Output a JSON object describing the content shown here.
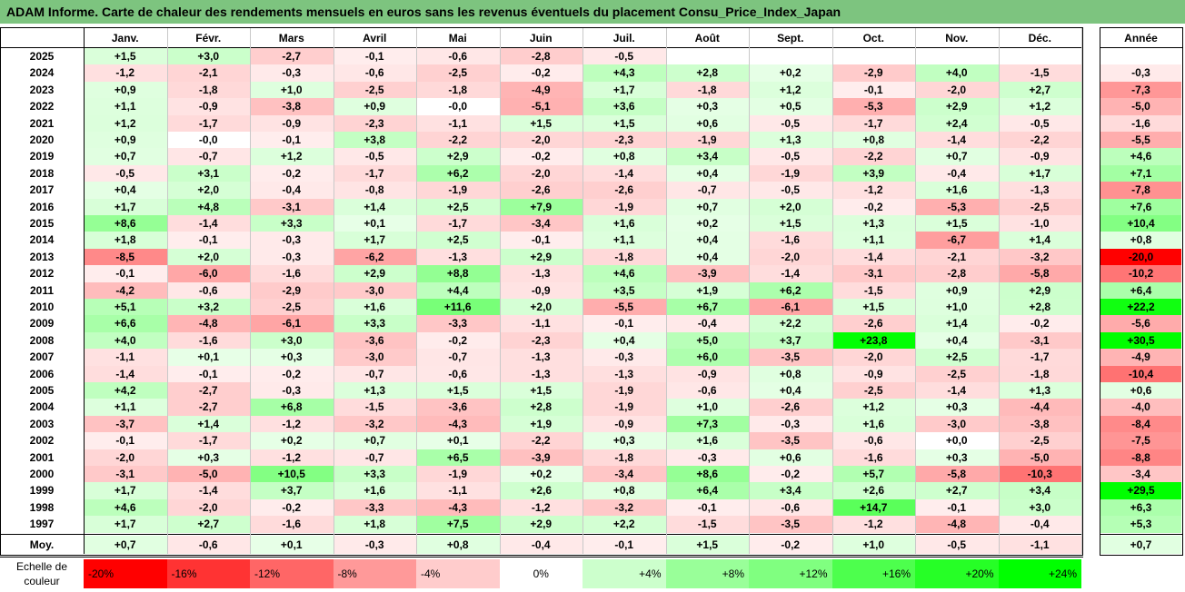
{
  "title": "ADAM Informe. Carte de chaleur des rendements mensuels en euros sans les revenus éventuels du placement Consu_Price_Index_Japan",
  "chart_data": {
    "type": "heatmap",
    "months": [
      "Janv.",
      "Févr.",
      "Mars",
      "Avril",
      "Mai",
      "Juin",
      "Juil.",
      "Août",
      "Sept.",
      "Oct.",
      "Nov.",
      "Déc."
    ],
    "year_header": "Année",
    "rows": [
      {
        "year": "2025",
        "m": [
          "+1,5",
          "+3,0",
          "-2,7",
          "-0,1",
          "-0,6",
          "-2,8",
          "-0,5",
          "",
          "",
          "",
          "",
          ""
        ],
        "y": ""
      },
      {
        "year": "2024",
        "m": [
          "-1,2",
          "-2,1",
          "-0,3",
          "-0,6",
          "-2,5",
          "-0,2",
          "+4,3",
          "+2,8",
          "+0,2",
          "-2,9",
          "+4,0",
          "-1,5"
        ],
        "y": "-0,3"
      },
      {
        "year": "2023",
        "m": [
          "+0,9",
          "-1,8",
          "+1,0",
          "-2,5",
          "-1,8",
          "-4,9",
          "+1,7",
          "-1,8",
          "+1,2",
          "-0,1",
          "-2,0",
          "+2,7"
        ],
        "y": "-7,3"
      },
      {
        "year": "2022",
        "m": [
          "+1,1",
          "-0,9",
          "-3,8",
          "+0,9",
          "-0,0",
          "-5,1",
          "+3,6",
          "+0,3",
          "+0,5",
          "-5,3",
          "+2,9",
          "+1,2"
        ],
        "y": "-5,0"
      },
      {
        "year": "2021",
        "m": [
          "+1,2",
          "-1,7",
          "-0,9",
          "-2,3",
          "-1,1",
          "+1,5",
          "+1,5",
          "+0,6",
          "-0,5",
          "-1,7",
          "+2,4",
          "-0,5"
        ],
        "y": "-1,6"
      },
      {
        "year": "2020",
        "m": [
          "+0,9",
          "-0,0",
          "-0,1",
          "+3,8",
          "-2,2",
          "-2,0",
          "-2,3",
          "-1,9",
          "+1,3",
          "+0,8",
          "-1,4",
          "-2,2"
        ],
        "y": "-5,5"
      },
      {
        "year": "2019",
        "m": [
          "+0,7",
          "-0,7",
          "+1,2",
          "-0,5",
          "+2,9",
          "-0,2",
          "+0,8",
          "+3,4",
          "-0,5",
          "-2,2",
          "+0,7",
          "-0,9"
        ],
        "y": "+4,6"
      },
      {
        "year": "2018",
        "m": [
          "-0,5",
          "+3,1",
          "-0,2",
          "-1,7",
          "+6,2",
          "-2,0",
          "-1,4",
          "+0,4",
          "-1,9",
          "+3,9",
          "-0,4",
          "+1,7"
        ],
        "y": "+7,1"
      },
      {
        "year": "2017",
        "m": [
          "+0,4",
          "+2,0",
          "-0,4",
          "-0,8",
          "-1,9",
          "-2,6",
          "-2,6",
          "-0,7",
          "-0,5",
          "-1,2",
          "+1,6",
          "-1,3"
        ],
        "y": "-7,8"
      },
      {
        "year": "2016",
        "m": [
          "+1,7",
          "+4,8",
          "-3,1",
          "+1,4",
          "+2,5",
          "+7,9",
          "-1,9",
          "+0,7",
          "+2,0",
          "-0,2",
          "-5,3",
          "-2,5"
        ],
        "y": "+7,6"
      },
      {
        "year": "2015",
        "m": [
          "+8,6",
          "-1,4",
          "+3,3",
          "+0,1",
          "-1,7",
          "-3,4",
          "+1,6",
          "+0,2",
          "+1,5",
          "+1,3",
          "+1,5",
          "-1,0"
        ],
        "y": "+10,4"
      },
      {
        "year": "2014",
        "m": [
          "+1,8",
          "-0,1",
          "-0,3",
          "+1,7",
          "+2,5",
          "-0,1",
          "+1,1",
          "+0,4",
          "-1,6",
          "+1,1",
          "-6,7",
          "+1,4"
        ],
        "y": "+0,8"
      },
      {
        "year": "2013",
        "m": [
          "-8,5",
          "+2,0",
          "-0,3",
          "-6,2",
          "-1,3",
          "+2,9",
          "-1,8",
          "+0,4",
          "-2,0",
          "-1,4",
          "-2,1",
          "-3,2"
        ],
        "y": "-20,0"
      },
      {
        "year": "2012",
        "m": [
          "-0,1",
          "-6,0",
          "-1,6",
          "+2,9",
          "+8,8",
          "-1,3",
          "+4,6",
          "-3,9",
          "-1,4",
          "-3,1",
          "-2,8",
          "-5,8"
        ],
        "y": "-10,2"
      },
      {
        "year": "2011",
        "m": [
          "-4,2",
          "-0,6",
          "-2,9",
          "-3,0",
          "+4,4",
          "-0,9",
          "+3,5",
          "+1,9",
          "+6,2",
          "-1,5",
          "+0,9",
          "+2,9"
        ],
        "y": "+6,4"
      },
      {
        "year": "2010",
        "m": [
          "+5,1",
          "+3,2",
          "-2,5",
          "+1,6",
          "+11,6",
          "+2,0",
          "-5,5",
          "+6,7",
          "-6,1",
          "+1,5",
          "+1,0",
          "+2,8"
        ],
        "y": "+22,2"
      },
      {
        "year": "2009",
        "m": [
          "+6,6",
          "-4,8",
          "-6,1",
          "+3,3",
          "-3,3",
          "-1,1",
          "-0,1",
          "-0,4",
          "+2,2",
          "-2,6",
          "+1,4",
          "-0,2"
        ],
        "y": "-5,6"
      },
      {
        "year": "2008",
        "m": [
          "+4,0",
          "-1,6",
          "+3,0",
          "-3,6",
          "-0,2",
          "-2,3",
          "+0,4",
          "+5,0",
          "+3,7",
          "+23,8",
          "+0,4",
          "-3,1"
        ],
        "y": "+30,5"
      },
      {
        "year": "2007",
        "m": [
          "-1,1",
          "+0,1",
          "+0,3",
          "-3,0",
          "-0,7",
          "-1,3",
          "-0,3",
          "+6,0",
          "-3,5",
          "-2,0",
          "+2,5",
          "-1,7"
        ],
        "y": "-4,9"
      },
      {
        "year": "2006",
        "m": [
          "-1,4",
          "-0,1",
          "-0,2",
          "-0,7",
          "-0,6",
          "-1,3",
          "-1,3",
          "-0,9",
          "+0,8",
          "-0,9",
          "-2,5",
          "-1,8"
        ],
        "y": "-10,4"
      },
      {
        "year": "2005",
        "m": [
          "+4,2",
          "-2,7",
          "-0,3",
          "+1,3",
          "+1,5",
          "+1,5",
          "-1,9",
          "-0,6",
          "+0,4",
          "-2,5",
          "-1,4",
          "+1,3"
        ],
        "y": "+0,6"
      },
      {
        "year": "2004",
        "m": [
          "+1,1",
          "-2,7",
          "+6,8",
          "-1,5",
          "-3,6",
          "+2,8",
          "-1,9",
          "+1,0",
          "-2,6",
          "+1,2",
          "+0,3",
          "-4,4"
        ],
        "y": "-4,0"
      },
      {
        "year": "2003",
        "m": [
          "-3,7",
          "+1,4",
          "-1,2",
          "-3,2",
          "-4,3",
          "+1,9",
          "-0,9",
          "+7,3",
          "-0,3",
          "+1,6",
          "-3,0",
          "-3,8"
        ],
        "y": "-8,4"
      },
      {
        "year": "2002",
        "m": [
          "-0,1",
          "-1,7",
          "+0,2",
          "+0,7",
          "+0,1",
          "-2,2",
          "+0,3",
          "+1,6",
          "-3,5",
          "-0,6",
          "+0,0",
          "-2,5"
        ],
        "y": "-7,5"
      },
      {
        "year": "2001",
        "m": [
          "-2,0",
          "+0,3",
          "-1,2",
          "-0,7",
          "+6,5",
          "-3,9",
          "-1,8",
          "-0,3",
          "+0,6",
          "-1,6",
          "+0,3",
          "-5,0"
        ],
        "y": "-8,8"
      },
      {
        "year": "2000",
        "m": [
          "-3,1",
          "-5,0",
          "+10,5",
          "+3,3",
          "-1,9",
          "+0,2",
          "-3,4",
          "+8,6",
          "-0,2",
          "+5,7",
          "-5,8",
          "-10,3"
        ],
        "y": "-3,4"
      },
      {
        "year": "1999",
        "m": [
          "+1,7",
          "-1,4",
          "+3,7",
          "+1,6",
          "-1,1",
          "+2,6",
          "+0,8",
          "+6,4",
          "+3,4",
          "+2,6",
          "+2,7",
          "+3,4"
        ],
        "y": "+29,5"
      },
      {
        "year": "1998",
        "m": [
          "+4,6",
          "-2,0",
          "-0,2",
          "-3,3",
          "-4,3",
          "-1,2",
          "-3,2",
          "-0,1",
          "-0,6",
          "+14,7",
          "-0,1",
          "+3,0"
        ],
        "y": "+6,3"
      },
      {
        "year": "1997",
        "m": [
          "+1,7",
          "+2,7",
          "-1,6",
          "+1,8",
          "+7,5",
          "+2,9",
          "+2,2",
          "-1,5",
          "-3,5",
          "-1,2",
          "-4,8",
          "-0,4"
        ],
        "y": "+5,3"
      }
    ],
    "average": {
      "label": "Moy.",
      "m": [
        "+0,7",
        "-0,6",
        "+0,1",
        "-0,3",
        "+0,8",
        "-0,4",
        "-0,1",
        "+1,5",
        "-0,2",
        "+1,0",
        "-0,5",
        "-1,1"
      ],
      "y": "+0,7"
    },
    "scale": {
      "label": "Echelle de couleur",
      "items": [
        {
          "text": "-20%",
          "value": -20,
          "color": "#ff0000"
        },
        {
          "text": "-16%",
          "value": -16,
          "color": "#ff3333"
        },
        {
          "text": "-12%",
          "value": -12,
          "color": "#ff6666"
        },
        {
          "text": "-8%",
          "value": -8,
          "color": "#ff9999"
        },
        {
          "text": "-4%",
          "value": -4,
          "color": "#ffcccc"
        },
        {
          "text": "0%",
          "value": 0,
          "color": "#ffffff"
        },
        {
          "text": "+4%",
          "value": 4,
          "color": "#ccffcc"
        },
        {
          "text": "+8%",
          "value": 8,
          "color": "#99ff99"
        },
        {
          "text": "+12%",
          "value": 12,
          "color": "#80ff80"
        },
        {
          "text": "+16%",
          "value": 16,
          "color": "#4dff4d"
        },
        {
          "text": "+20%",
          "value": 20,
          "color": "#26ff26"
        },
        {
          "text": "+24%",
          "value": 24,
          "color": "#00ff00"
        }
      ]
    },
    "colors": {
      "title_bg": "#7dc47f",
      "negative": "#ff0000",
      "positive": "#00ff00"
    }
  }
}
